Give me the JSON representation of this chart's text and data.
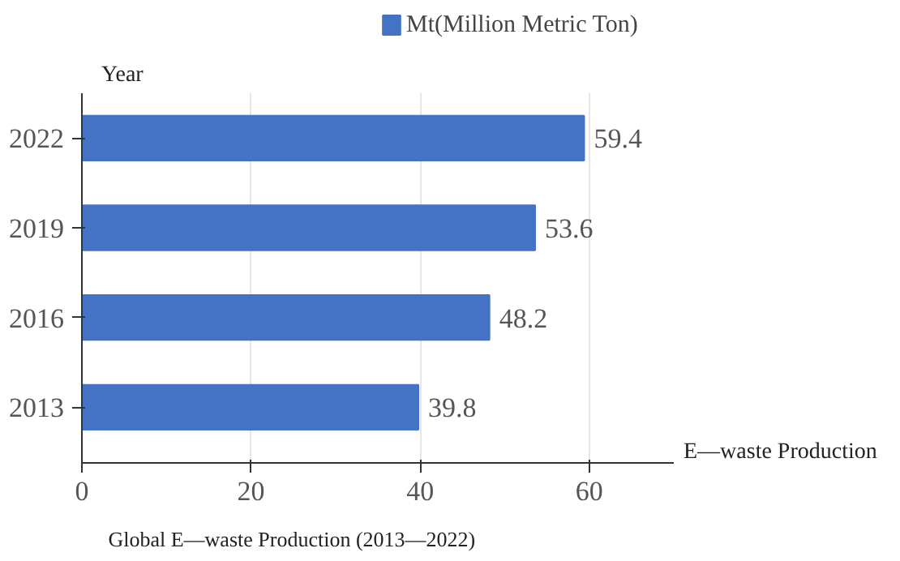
{
  "chart_data": {
    "type": "bar",
    "orientation": "horizontal",
    "categories": [
      "2022",
      "2019",
      "2016",
      "2013"
    ],
    "series": [
      {
        "name": "Mt(Million Metric Ton)",
        "color": "#4472c4",
        "values": [
          59.4,
          53.6,
          48.2,
          39.8
        ]
      }
    ],
    "xlabel": "E—waste Production",
    "ylabel": "Year",
    "annotations": [
      "Global E—waste Production (2013—2022)"
    ],
    "xlim": [
      0,
      70
    ],
    "xticks": [
      0,
      20,
      40,
      60
    ],
    "grid": "x",
    "legend": "top",
    "data_labels": true
  }
}
